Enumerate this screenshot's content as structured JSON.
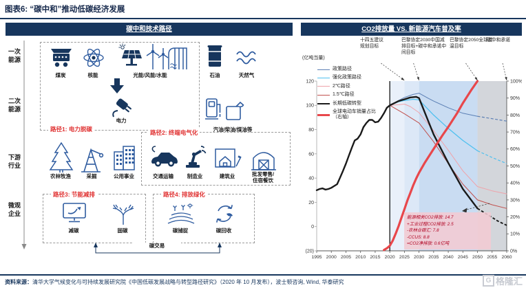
{
  "figure": {
    "title": "图表6:  “碳中和”推动低碳经济发展"
  },
  "left_panel": {
    "header": "碳中和技术路径",
    "row_labels": [
      "一次\n能源",
      "二次\n能源",
      "下游\n行业",
      "微观\n企业"
    ],
    "labels": {
      "coal": "煤炭",
      "nuclear": "核能",
      "renewables": "光能/风能/水能",
      "oil": "石油",
      "gas": "天然气",
      "electricity": "电力",
      "fuels": "汽油/柴油/煤油等",
      "agriculture": "农林牧渔",
      "mining": "采掘",
      "utilities": "公用事业",
      "transport": "交通运输",
      "manufacturing": "制造业",
      "construction": "建筑业",
      "retail": "批发零售/\n住宿餐饮",
      "reduce_carbon": "减碳",
      "fix_carbon": "固碳",
      "capture": "碳捕捉",
      "recycle": "碳回收",
      "trading": "碳交易"
    },
    "paths": {
      "p1": "路径1: 电力脱碳",
      "p2": "路径2: 终端电气化",
      "p3": "路径3: 节能减排",
      "p4": "路径4: 排放绿化"
    }
  },
  "right_panel": {
    "header": "CO2排放量 VS. 新能源汽车普及率",
    "y_axis_label": "(亿吨当量)",
    "annotations": [
      "十四五建议规划目标",
      "巴黎协定2030中国减排目标+碳中和承诺中间目标",
      "巴黎协定2050全球控温目标",
      "碳中和承诺"
    ],
    "info_box": [
      "能源相关CO2排放: 14.7",
      "+工业过程CO2排放: 2.5",
      "-农林业碳汇: 7.8",
      "-CCUS: 8.8",
      "=CO2净排放: 0.6亿吨"
    ]
  },
  "chart_data": {
    "type": "line",
    "title": "CO2排放量 VS. 新能源汽车普及率",
    "ylabel_left": "(亿吨当量)",
    "xlim": [
      1995,
      2060
    ],
    "ylim_left": [
      -20,
      120
    ],
    "ylim_right": [
      0,
      100
    ],
    "grid": false,
    "legend_position": "top-left",
    "x_ticks": [
      1995,
      2000,
      2005,
      2010,
      2015,
      2020,
      2025,
      2030,
      2035,
      2040,
      2045,
      2050,
      2055,
      2060
    ],
    "y_ticks_left": [
      "120",
      "100",
      "80",
      "60",
      "40",
      "20",
      "0",
      "(20)"
    ],
    "y_ticks_right": [
      "100%",
      "90%",
      "80%",
      "70%",
      "60%",
      "50%",
      "40%",
      "30%",
      "20%",
      "10%",
      "0%"
    ],
    "vline_year": 2020,
    "bands": [
      {
        "x0": 2020,
        "x1": 2025,
        "color": "#E9F0FA"
      },
      {
        "x0": 2025,
        "x1": 2030,
        "color": "#DCE8F7"
      },
      {
        "x0": 2030,
        "x1": 2050,
        "color": "#C9DCF2"
      },
      {
        "x0": 2050,
        "x1": 2060,
        "color": "#D3D6DB"
      }
    ],
    "annotation_targets": [
      2025,
      2030,
      2050,
      2060
    ],
    "series": [
      {
        "name": "政策路径",
        "axis": "left",
        "color": "#5B7FB4",
        "width": 1,
        "points": [
          [
            2020,
            100
          ],
          [
            2023,
            104
          ],
          [
            2025,
            106.5
          ],
          [
            2028,
            109
          ],
          [
            2030,
            110
          ],
          [
            2033,
            106
          ],
          [
            2035,
            103.5
          ],
          [
            2040,
            98
          ],
          [
            2045,
            93.5
          ],
          [
            2050,
            91
          ]
        ],
        "dashed_points": [
          [
            2050,
            91
          ],
          [
            2055,
            89
          ],
          [
            2060,
            87
          ]
        ]
      },
      {
        "name": "强化政策路径",
        "axis": "left",
        "color": "#4FC0EF",
        "width": 1.3,
        "points": [
          [
            2020,
            100
          ],
          [
            2023,
            103
          ],
          [
            2025,
            104
          ],
          [
            2028,
            105
          ],
          [
            2030,
            104.5
          ],
          [
            2035,
            92
          ],
          [
            2040,
            81
          ],
          [
            2045,
            71
          ],
          [
            2050,
            62.5
          ]
        ],
        "dashed_points": [
          [
            2050,
            62.5
          ],
          [
            2055,
            57
          ],
          [
            2060,
            52
          ]
        ]
      },
      {
        "name": "2℃路径",
        "axis": "left",
        "color": "#EFA3AA",
        "width": 1,
        "points": [
          [
            2020,
            100
          ],
          [
            2023,
            100.5
          ],
          [
            2025,
            101
          ],
          [
            2027,
            99
          ],
          [
            2030,
            94
          ],
          [
            2035,
            79
          ],
          [
            2040,
            63
          ],
          [
            2045,
            46
          ],
          [
            2050,
            33
          ],
          [
            2055,
            29.5
          ],
          [
            2060,
            27
          ]
        ],
        "dashed_points": []
      },
      {
        "name": "1.5℃路径",
        "axis": "left",
        "color": "#C0504D",
        "width": 1,
        "points": [
          [
            2020,
            100
          ],
          [
            2025,
            93
          ],
          [
            2030,
            85.5
          ],
          [
            2035,
            70
          ],
          [
            2040,
            52
          ],
          [
            2045,
            35
          ],
          [
            2050,
            22
          ],
          [
            2055,
            18
          ],
          [
            2060,
            15
          ]
        ],
        "dashed_points": []
      },
      {
        "name": "长期低碳转型",
        "axis": "left",
        "color": "#1A1A1A",
        "width": 2.4,
        "points": [
          [
            1995,
            30
          ],
          [
            1996,
            31
          ],
          [
            1997,
            31.5
          ],
          [
            1998,
            30.5
          ],
          [
            1999,
            31
          ],
          [
            2000,
            32
          ],
          [
            2001,
            33.5
          ],
          [
            2002,
            35
          ],
          [
            2003,
            40.5
          ],
          [
            2004,
            46
          ],
          [
            2005,
            52
          ],
          [
            2006,
            58.5
          ],
          [
            2007,
            65
          ],
          [
            2008,
            71
          ],
          [
            2009,
            72.5
          ],
          [
            2010,
            76
          ],
          [
            2011,
            82
          ],
          [
            2012,
            85.5
          ],
          [
            2013,
            88
          ],
          [
            2014,
            88
          ],
          [
            2015,
            86
          ],
          [
            2016,
            86.5
          ],
          [
            2017,
            89.5
          ],
          [
            2018,
            93.5
          ],
          [
            2019,
            98
          ],
          [
            2020,
            100
          ],
          [
            2023,
            103.5
          ],
          [
            2025,
            105
          ],
          [
            2027,
            106.5
          ],
          [
            2029,
            107
          ],
          [
            2030,
            106
          ],
          [
            2032,
            94
          ],
          [
            2035,
            76
          ],
          [
            2040,
            52.5
          ],
          [
            2045,
            31
          ],
          [
            2050,
            15
          ]
        ],
        "dashed_points": [
          [
            2050,
            15
          ],
          [
            2054,
            9
          ],
          [
            2057,
            4.5
          ],
          [
            2060,
            1
          ]
        ]
      },
      {
        "name": "全球电动车销量占比\n（右轴）",
        "axis": "right",
        "color": "#E8474B",
        "width": 3.2,
        "points": [
          [
            2018,
            0.5
          ],
          [
            2019,
            1.5
          ],
          [
            2020,
            3
          ],
          [
            2021,
            6
          ],
          [
            2022,
            10
          ],
          [
            2023,
            14.5
          ],
          [
            2024,
            19.5
          ],
          [
            2025,
            24.5
          ],
          [
            2026,
            29.5
          ],
          [
            2027,
            34
          ],
          [
            2028,
            38.5
          ],
          [
            2029,
            42.5
          ],
          [
            2030,
            46
          ],
          [
            2032,
            52
          ],
          [
            2035,
            60
          ],
          [
            2038,
            68
          ],
          [
            2040,
            73
          ],
          [
            2043,
            81
          ],
          [
            2045,
            87
          ],
          [
            2048,
            95
          ],
          [
            2050,
            100
          ]
        ],
        "dashed_points": []
      }
    ]
  },
  "footer": {
    "source_label": "资料来源：",
    "source_text": "清华大学气候变化与可持续发展研究院《中国低碳发展战略与转型路径研究》（2020 年 10 月发布），波士顿咨询, Wind, 华泰研究",
    "logo_mark": "G",
    "logo": "格隆汇"
  }
}
